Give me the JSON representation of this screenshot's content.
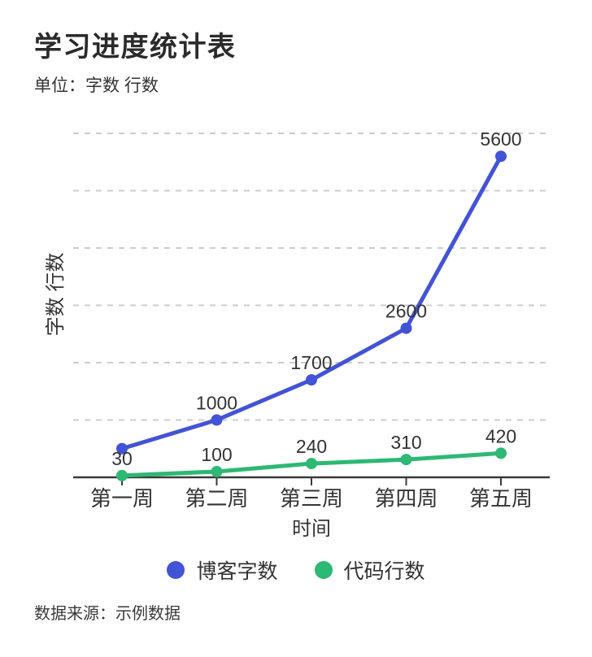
{
  "header": {
    "title": "学习进度统计表",
    "subtitle": "单位：字数 行数"
  },
  "legend": {
    "items": [
      {
        "label": "博客字数",
        "color": "#4353d6"
      },
      {
        "label": "代码行数",
        "color": "#2db873"
      }
    ]
  },
  "footer": {
    "source": "数据来源：示例数据"
  },
  "colors": {
    "title": "#2b2b2b",
    "text": "#333333",
    "axis": "#3a3a3a",
    "gridline": "#cccccc",
    "background": "#ffffff"
  },
  "chart_data": {
    "type": "line",
    "title": "学习进度统计表",
    "unit_note": "单位：字数 行数",
    "categories": [
      "第一周",
      "第二周",
      "第三周",
      "第四周",
      "第五周"
    ],
    "series": [
      {
        "name": "博客字数",
        "color": "#4353d6",
        "values": [
          500,
          1000,
          1700,
          2600,
          5600
        ],
        "point_labels": [
          "",
          "1000",
          "1700",
          "2600",
          "5600"
        ]
      },
      {
        "name": "代码行数",
        "color": "#2db873",
        "values": [
          30,
          100,
          240,
          310,
          420
        ],
        "point_labels": [
          "30",
          "100",
          "240",
          "310",
          "420"
        ]
      }
    ],
    "xlabel": "时间",
    "ylabel": "字数 行数",
    "ylim": [
      0,
      6000
    ],
    "grid": {
      "horizontal_lines": 6,
      "style": "dashed",
      "vertical": false
    },
    "legend_position": "bottom",
    "data_source": "示例数据"
  }
}
